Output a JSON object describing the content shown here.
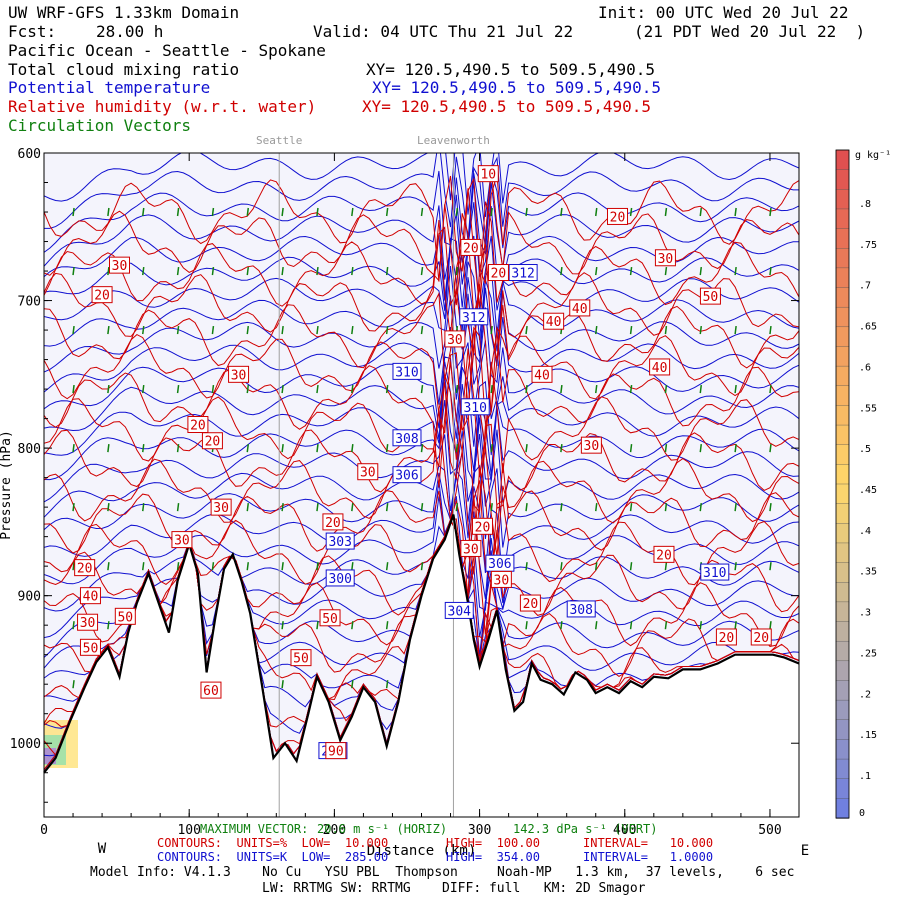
{
  "header": {
    "model": "UW WRF-GFS 1.33km Domain",
    "init": "Init: 00 UTC Wed 20 Jul 22",
    "fcst_label": "Fcst:",
    "fcst_value": "28.00 h",
    "valid": "Valid: 04 UTC Thu 21 Jul 22",
    "valid_local": "(21 PDT Wed 20 Jul 22  )",
    "region": "Pacific Ocean - Seattle - Spokane",
    "field1_name": "Total cloud mixing ratio",
    "field1_xy": "XY= 120.5,490.5 to 509.5,490.5",
    "field2_name": "Potential temperature",
    "field2_xy": "XY= 120.5,490.5 to 509.5,490.5",
    "field3_name": "Relative humidity (w.r.t. water)",
    "field3_xy": "XY= 120.5,490.5 to 509.5,490.5",
    "field4_name": "Circulation Vectors"
  },
  "chart_data": {
    "type": "cross-section",
    "x_axis": {
      "range": [
        0,
        520
      ],
      "ticks": [
        0,
        100,
        200,
        300,
        400,
        500
      ],
      "tick_labels": [
        "0",
        "100",
        "200",
        "300",
        "400",
        "500"
      ],
      "left_label": "W",
      "right_label": "E",
      "label": "Distance (km)"
    },
    "y_axis": {
      "range": [
        600,
        1050
      ],
      "scale": "inverted",
      "tick_values": [
        600,
        700,
        800,
        900,
        1000
      ],
      "tick_labels": [
        "600",
        "700",
        "800",
        "900",
        "1000"
      ],
      "label": "Pressure (hPa)"
    },
    "place_markers": [
      {
        "name": "Seattle",
        "x": 162
      },
      {
        "name": "Leavenworth",
        "x": 282
      }
    ],
    "terrain": [
      [
        0,
        1020
      ],
      [
        8,
        1010
      ],
      [
        18,
        985
      ],
      [
        28,
        962
      ],
      [
        36,
        945
      ],
      [
        44,
        935
      ],
      [
        52,
        955
      ],
      [
        58,
        925
      ],
      [
        64,
        905
      ],
      [
        72,
        885
      ],
      [
        80,
        908
      ],
      [
        86,
        925
      ],
      [
        92,
        890
      ],
      [
        100,
        865
      ],
      [
        106,
        885
      ],
      [
        112,
        952
      ],
      [
        118,
        915
      ],
      [
        124,
        882
      ],
      [
        130,
        872
      ],
      [
        136,
        890
      ],
      [
        142,
        912
      ],
      [
        150,
        960
      ],
      [
        158,
        1010
      ],
      [
        166,
        1000
      ],
      [
        174,
        1012
      ],
      [
        182,
        980
      ],
      [
        188,
        955
      ],
      [
        196,
        972
      ],
      [
        204,
        998
      ],
      [
        212,
        982
      ],
      [
        220,
        962
      ],
      [
        228,
        972
      ],
      [
        236,
        1002
      ],
      [
        244,
        972
      ],
      [
        252,
        930
      ],
      [
        260,
        900
      ],
      [
        268,
        875
      ],
      [
        276,
        862
      ],
      [
        282,
        845
      ],
      [
        286,
        872
      ],
      [
        292,
        905
      ],
      [
        296,
        930
      ],
      [
        300,
        948
      ],
      [
        306,
        930
      ],
      [
        312,
        910
      ],
      [
        318,
        950
      ],
      [
        324,
        978
      ],
      [
        330,
        972
      ],
      [
        336,
        946
      ],
      [
        342,
        957
      ],
      [
        350,
        960
      ],
      [
        358,
        967
      ],
      [
        366,
        952
      ],
      [
        374,
        957
      ],
      [
        380,
        966
      ],
      [
        388,
        962
      ],
      [
        396,
        966
      ],
      [
        404,
        958
      ],
      [
        412,
        962
      ],
      [
        420,
        955
      ],
      [
        430,
        956
      ],
      [
        440,
        950
      ],
      [
        452,
        950
      ],
      [
        464,
        946
      ],
      [
        476,
        940
      ],
      [
        490,
        940
      ],
      [
        502,
        940
      ],
      [
        510,
        942
      ],
      [
        520,
        946
      ]
    ],
    "theta_labels": [
      {
        "value": "312",
        "x": 330,
        "p": 681
      },
      {
        "value": "312",
        "x": 296,
        "p": 711
      },
      {
        "value": "310",
        "x": 250,
        "p": 748
      },
      {
        "value": "310",
        "x": 297,
        "p": 772
      },
      {
        "value": "308",
        "x": 250,
        "p": 793
      },
      {
        "value": "306",
        "x": 250,
        "p": 818
      },
      {
        "value": "303",
        "x": 204,
        "p": 863
      },
      {
        "value": "300",
        "x": 204,
        "p": 888
      },
      {
        "value": "306",
        "x": 314,
        "p": 878
      },
      {
        "value": "304",
        "x": 286,
        "p": 910
      },
      {
        "value": "308",
        "x": 370,
        "p": 909
      },
      {
        "value": "310",
        "x": 462,
        "p": 884
      },
      {
        "value": "296",
        "x": 199,
        "p": 1005
      }
    ],
    "rh_labels": [
      {
        "value": "10",
        "x": 306,
        "p": 614
      },
      {
        "value": "20",
        "x": 395,
        "p": 643
      },
      {
        "value": "20",
        "x": 294,
        "p": 664
      },
      {
        "value": "20",
        "x": 313,
        "p": 681
      },
      {
        "value": "30",
        "x": 52,
        "p": 676
      },
      {
        "value": "20",
        "x": 40,
        "p": 696
      },
      {
        "value": "30",
        "x": 428,
        "p": 671
      },
      {
        "value": "50",
        "x": 459,
        "p": 697
      },
      {
        "value": "40",
        "x": 369,
        "p": 705
      },
      {
        "value": "40",
        "x": 351,
        "p": 714
      },
      {
        "value": "30",
        "x": 283,
        "p": 726
      },
      {
        "value": "40",
        "x": 343,
        "p": 750
      },
      {
        "value": "40",
        "x": 424,
        "p": 745
      },
      {
        "value": "30",
        "x": 134,
        "p": 750
      },
      {
        "value": "20",
        "x": 106,
        "p": 784
      },
      {
        "value": "20",
        "x": 116,
        "p": 795
      },
      {
        "value": "30",
        "x": 377,
        "p": 798
      },
      {
        "value": "30",
        "x": 223,
        "p": 816
      },
      {
        "value": "30",
        "x": 122,
        "p": 840
      },
      {
        "value": "20",
        "x": 199,
        "p": 850
      },
      {
        "value": "30",
        "x": 294,
        "p": 868
      },
      {
        "value": "20",
        "x": 302,
        "p": 853
      },
      {
        "value": "30",
        "x": 315,
        "p": 889
      },
      {
        "value": "20",
        "x": 427,
        "p": 872
      },
      {
        "value": "20",
        "x": 335,
        "p": 905
      },
      {
        "value": "30",
        "x": 95,
        "p": 862
      },
      {
        "value": "20",
        "x": 28,
        "p": 881
      },
      {
        "value": "40",
        "x": 32,
        "p": 900
      },
      {
        "value": "50",
        "x": 56,
        "p": 914
      },
      {
        "value": "30",
        "x": 30,
        "p": 918
      },
      {
        "value": "50",
        "x": 32,
        "p": 935
      },
      {
        "value": "50",
        "x": 197,
        "p": 915
      },
      {
        "value": "50",
        "x": 177,
        "p": 942
      },
      {
        "value": "60",
        "x": 115,
        "p": 964
      },
      {
        "value": "90",
        "x": 201,
        "p": 1005
      },
      {
        "value": "20",
        "x": 470,
        "p": 928
      },
      {
        "value": "20",
        "x": 494,
        "p": 928
      }
    ],
    "colorbar": {
      "unit": "g kg⁻¹",
      "labels": [
        ".8",
        ".75",
        ".7",
        ".65",
        ".6",
        ".55",
        ".5",
        ".45",
        ".4",
        ".35",
        ".3",
        ".25",
        ".2",
        ".15",
        ".1",
        "0"
      ],
      "min": 0,
      "max": 0.85,
      "colors": {
        "high": "#e05050",
        "mid": "#ffd86a",
        "low": "#7080e0"
      }
    },
    "colors": {
      "terrain": "#000000",
      "theta": "#1010d0",
      "rh": "#d00000",
      "vectors": "#108010",
      "background": "#f4f4fc",
      "markers": "#a0a0a0"
    }
  },
  "footer": {
    "maxvec_label": "MAXIMUM VECTOR:",
    "maxvec_h": "20.6 m s⁻¹ (HORIZ)",
    "maxvec_v": "142.3 dPa s⁻¹ (VERT)",
    "red_contours": "CONTOURS:  UNITS=%  LOW=  10.000",
    "red_high": "HIGH=  100.00",
    "red_interval": "INTERVAL=   10.000",
    "blue_contours": "CONTOURS:  UNITS=K  LOW=  285.00",
    "blue_high": "HIGH=  354.00",
    "blue_interval": "INTERVAL=   1.0000",
    "model_info": "Model Info: V4.1.3    No Cu   YSU PBL  Thompson     Noah-MP   1.3 km,  37 levels,    6 sec",
    "model_info2": "LW: RRTMG SW: RRTMG    DIFF: full   KM: 2D Smagor"
  }
}
